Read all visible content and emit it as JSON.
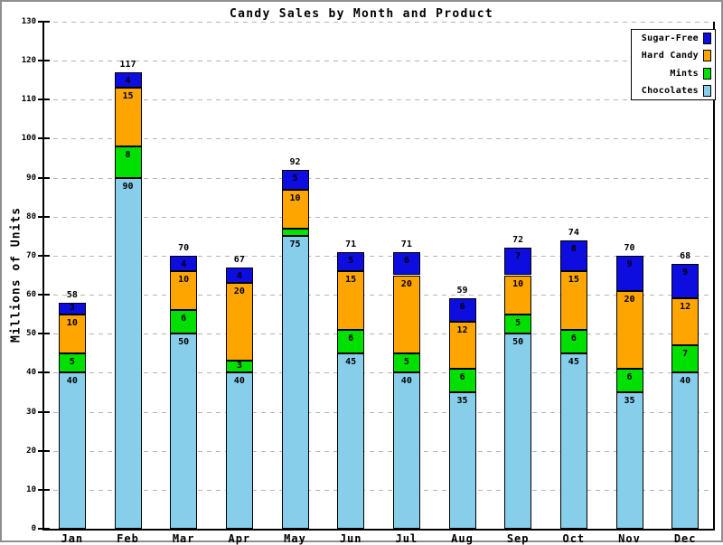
{
  "page": {
    "background": "#ffffff",
    "border_color": "#8e8e8e",
    "grid_color": "#b5b5b5",
    "axis_color": "#000000"
  },
  "chart_data": {
    "type": "bar",
    "stacked": true,
    "title": "Candy Sales by Month and Product",
    "xlabel": "",
    "ylabel": "Millions of Units",
    "ylim": [
      0,
      130
    ],
    "ytick_step": 10,
    "grid": "horizontal-dashed",
    "legend_position": "top-right",
    "categories": [
      "Jan",
      "Feb",
      "Mar",
      "Apr",
      "May",
      "Jun",
      "Jul",
      "Aug",
      "Sep",
      "Oct",
      "Nov",
      "Dec"
    ],
    "series": [
      {
        "name": "Chocolates",
        "color": "#87CEEB",
        "values": [
          40,
          90,
          50,
          40,
          75,
          45,
          40,
          35,
          50,
          45,
          35,
          40
        ]
      },
      {
        "name": "Mints",
        "color": "#00E000",
        "values": [
          5,
          8,
          6,
          3,
          2,
          6,
          5,
          6,
          5,
          6,
          6,
          7
        ]
      },
      {
        "name": "Hard Candy",
        "color": "#FFA500",
        "values": [
          10,
          15,
          10,
          20,
          10,
          15,
          20,
          12,
          10,
          15,
          20,
          12
        ]
      },
      {
        "name": "Sugar-Free",
        "color": "#0D0DE0",
        "values": [
          3,
          4,
          4,
          4,
          5,
          5,
          6,
          6,
          7,
          8,
          9,
          9
        ]
      }
    ],
    "totals": [
      58,
      117,
      70,
      67,
      92,
      71,
      71,
      59,
      72,
      74,
      70,
      68
    ],
    "legend_items": [
      "Sugar-Free",
      "Hard Candy",
      "Mints",
      "Chocolates"
    ]
  }
}
